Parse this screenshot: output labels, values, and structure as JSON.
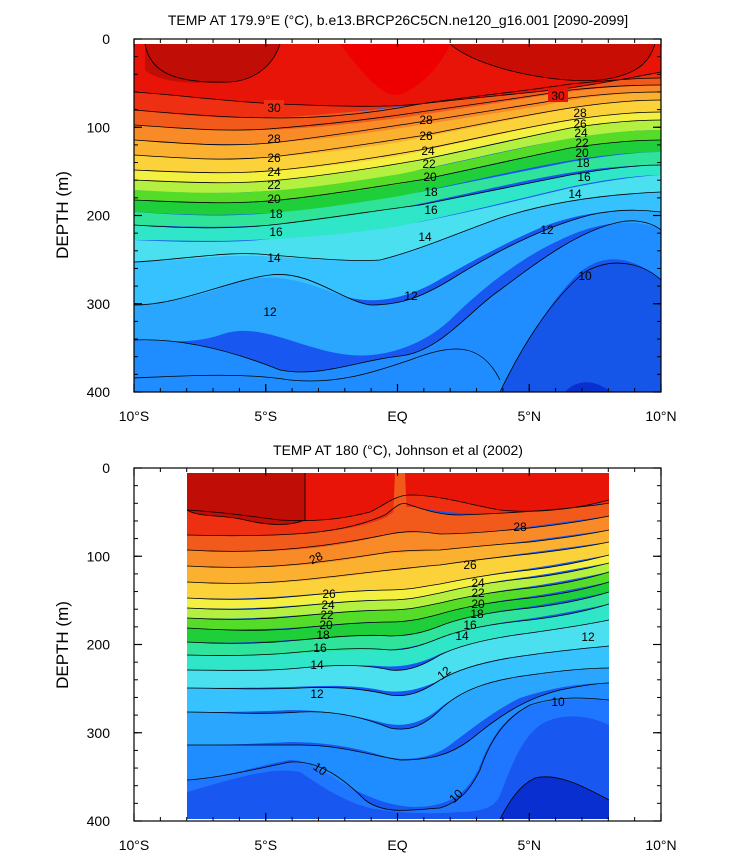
{
  "chart_data": [
    {
      "type": "contour",
      "title": "TEMP AT 179.9°E (°C), b.e13.BRCP26C5CN.ne120_g16.001 [2090-2099]",
      "xlabel": "",
      "ylabel": "DEPTH (m)",
      "xlim": [
        -10,
        10
      ],
      "ylim": [
        400,
        0
      ],
      "xtick_values": [
        -10,
        -5,
        0,
        5,
        10
      ],
      "xtick_labels": [
        "10°S",
        "5°S",
        "EQ",
        "5°N",
        "10°N"
      ],
      "ytick_values": [
        0,
        100,
        200,
        300,
        400
      ],
      "ytick_labels": [
        "0",
        "100",
        "200",
        "300",
        "400"
      ],
      "data_xlim": [
        -10,
        10
      ],
      "data_ylim": [
        5,
        400
      ],
      "isotherms": [
        {
          "level": 30,
          "x": [
            -10,
            -5,
            -2,
            0,
            2,
            5,
            8,
            10
          ],
          "depth": [
            62,
            72,
            80,
            90,
            88,
            78,
            70,
            62
          ]
        },
        {
          "level": 28,
          "x": [
            -10,
            -5,
            -2,
            0,
            2,
            5,
            8,
            10
          ],
          "depth": [
            98,
            108,
            112,
            105,
            95,
            90,
            85,
            80
          ]
        },
        {
          "level": 26,
          "x": [
            -10,
            -5,
            -2,
            0,
            2,
            5,
            8,
            10
          ],
          "depth": [
            115,
            125,
            128,
            118,
            108,
            102,
            95,
            90
          ]
        },
        {
          "level": 24,
          "x": [
            -10,
            -5,
            -2,
            0,
            2,
            5,
            8,
            10
          ],
          "depth": [
            138,
            145,
            148,
            135,
            122,
            115,
            105,
            100
          ]
        },
        {
          "level": 22,
          "x": [
            -10,
            -5,
            -2,
            0,
            2,
            5,
            8,
            10
          ],
          "depth": [
            160,
            165,
            165,
            150,
            138,
            128,
            118,
            115
          ]
        },
        {
          "level": 20,
          "x": [
            -10,
            -5,
            -2,
            0,
            2,
            5,
            8,
            10
          ],
          "depth": [
            178,
            182,
            180,
            166,
            152,
            142,
            130,
            128
          ]
        },
        {
          "level": 18,
          "x": [
            -10,
            -5,
            -2,
            0,
            2,
            5,
            8,
            10
          ],
          "depth": [
            193,
            198,
            195,
            180,
            168,
            155,
            142,
            140
          ]
        },
        {
          "level": 16,
          "x": [
            -10,
            -5,
            -2,
            0,
            2,
            5,
            8,
            10
          ],
          "depth": [
            215,
            220,
            215,
            200,
            185,
            170,
            157,
            155
          ]
        },
        {
          "level": 14,
          "x": [
            -10,
            -5,
            -2,
            0,
            2,
            5,
            8,
            10
          ],
          "depth": [
            245,
            250,
            238,
            230,
            212,
            195,
            178,
            175
          ]
        },
        {
          "level": 12,
          "x": [
            -10,
            -7,
            -5,
            -3,
            0,
            2,
            5,
            8,
            10
          ],
          "depth": [
            300,
            310,
            320,
            290,
            300,
            275,
            245,
            218,
            210
          ]
        },
        {
          "level": 10,
          "x": [
            -10,
            -7,
            -5,
            -2,
            0,
            3,
            5,
            8,
            10
          ],
          "depth": [
            383,
            380,
            385,
            365,
            360,
            395,
            300,
            260,
            265
          ]
        }
      ],
      "contour_labels": [
        "30",
        "28",
        "26",
        "24",
        "22",
        "20",
        "18",
        "16",
        "14",
        "12",
        "10"
      ]
    },
    {
      "type": "contour",
      "title": "TEMP AT 180 (°C), Johnson et al (2002)",
      "xlabel": "",
      "ylabel": "DEPTH (m)",
      "xlim": [
        -10,
        10
      ],
      "ylim": [
        400,
        0
      ],
      "xtick_values": [
        -10,
        -5,
        0,
        5,
        10
      ],
      "xtick_labels": [
        "10°S",
        "5°S",
        "EQ",
        "5°N",
        "10°N"
      ],
      "ytick_values": [
        0,
        100,
        200,
        300,
        400
      ],
      "ytick_labels": [
        "0",
        "100",
        "200",
        "300",
        "400"
      ],
      "data_xlim": [
        -8,
        8
      ],
      "data_ylim": [
        5,
        390
      ],
      "isotherms": [
        {
          "level": 28,
          "x": [
            -8,
            -5,
            -3,
            -1,
            0,
            1,
            3,
            5,
            8
          ],
          "depth": [
            100,
            98,
            95,
            88,
            82,
            90,
            80,
            75,
            72
          ]
        },
        {
          "level": 26,
          "x": [
            -8,
            -5,
            -3,
            -1,
            0,
            1,
            3,
            5,
            8
          ],
          "depth": [
            130,
            132,
            128,
            118,
            110,
            115,
            108,
            102,
            92
          ]
        },
        {
          "level": 24,
          "x": [
            -8,
            -5,
            -3,
            -1,
            0,
            1,
            3,
            5,
            8
          ],
          "depth": [
            148,
            150,
            145,
            135,
            128,
            130,
            122,
            115,
            102
          ]
        },
        {
          "level": 22,
          "x": [
            -8,
            -5,
            -3,
            -1,
            0,
            1,
            3,
            5,
            8
          ],
          "depth": [
            165,
            168,
            160,
            150,
            145,
            145,
            135,
            128,
            112
          ]
        },
        {
          "level": 20,
          "x": [
            -8,
            -5,
            -3,
            -1,
            0,
            1,
            3,
            5,
            8
          ],
          "depth": [
            182,
            185,
            175,
            168,
            160,
            160,
            150,
            140,
            122
          ]
        },
        {
          "level": 18,
          "x": [
            -8,
            -5,
            -3,
            -1,
            0,
            1,
            3,
            5,
            8
          ],
          "depth": [
            198,
            200,
            190,
            182,
            175,
            175,
            162,
            152,
            132
          ]
        },
        {
          "level": 16,
          "x": [
            -8,
            -5,
            -3,
            -1,
            0,
            1,
            3,
            5,
            8
          ],
          "depth": [
            215,
            218,
            208,
            198,
            192,
            190,
            178,
            165,
            145
          ]
        },
        {
          "level": 14,
          "x": [
            -8,
            -5,
            -3,
            -1,
            0,
            1,
            3,
            5,
            8
          ],
          "depth": [
            235,
            238,
            228,
            220,
            212,
            205,
            192,
            182,
            165
          ]
        },
        {
          "level": 12,
          "x": [
            -8,
            -5,
            -3,
            -1,
            0,
            1,
            3,
            5,
            8
          ],
          "depth": [
            262,
            265,
            262,
            250,
            245,
            238,
            220,
            205,
            190
          ]
        },
        {
          "level": 10,
          "x": [
            -8,
            -6,
            -4,
            -2,
            0,
            2,
            3,
            5,
            8
          ],
          "depth": [
            365,
            355,
            340,
            345,
            375,
            385,
            320,
            275,
            255
          ]
        }
      ],
      "contour_labels": [
        "28",
        "26",
        "24",
        "22",
        "20",
        "18",
        "16",
        "14",
        "12",
        "10"
      ]
    }
  ]
}
